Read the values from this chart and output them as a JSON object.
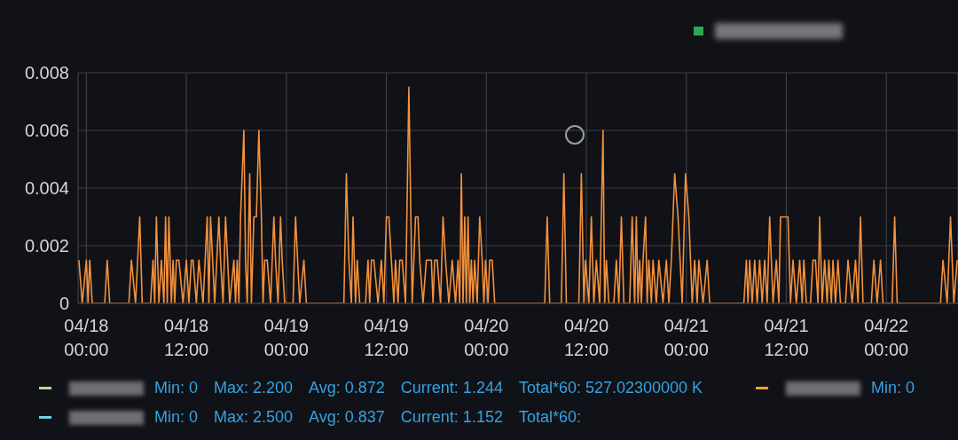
{
  "chart_data": {
    "type": "line",
    "color": "#f2913d",
    "x": [
      "--04-17T23:06",
      "--04-17T23:30",
      "--04-18T00:00",
      "--04-18T00:12",
      "--04-18T00:24",
      "--04-18T00:42",
      "--04-18T02:12",
      "--04-18T02:30",
      "--04-18T02:48",
      "--04-18T05:06",
      "--04-18T05:24",
      "--04-18T05:54",
      "--04-18T06:24",
      "--04-18T06:42",
      "--04-18T07:42",
      "--04-18T08:00",
      "--04-18T08:12",
      "--04-18T08:24",
      "--04-18T08:42",
      "--04-18T09:00",
      "--04-18T09:18",
      "--04-18T09:30",
      "--04-18T09:42",
      "--04-18T09:54",
      "--04-18T10:12",
      "--04-18T10:24",
      "--04-18T10:36",
      "--04-18T10:48",
      "--04-18T11:06",
      "--04-18T11:36",
      "--04-18T12:00",
      "--04-18T12:18",
      "--04-18T12:36",
      "--04-18T12:48",
      "--04-18T13:12",
      "--04-18T13:30",
      "--04-18T14:00",
      "--04-18T14:30",
      "--04-18T14:42",
      "--04-18T14:54",
      "--04-18T15:24",
      "--04-18T15:54",
      "--04-18T16:06",
      "--04-18T16:24",
      "--04-18T16:42",
      "--04-18T17:12",
      "--04-18T17:42",
      "--04-18T17:54",
      "--04-18T18:06",
      "--04-18T18:18",
      "--04-18T18:30",
      "--04-18T18:54",
      "--04-18T19:06",
      "--04-18T19:18",
      "--04-18T19:36",
      "--04-18T19:48",
      "--04-18T20:06",
      "--04-18T20:24",
      "--04-18T20:42",
      "--04-18T21:00",
      "--04-18T21:12",
      "--04-18T21:24",
      "--04-18T21:42",
      "--04-18T22:06",
      "--04-18T22:30",
      "--04-18T22:42",
      "--04-18T23:00",
      "--04-18T23:18",
      "--04-18T23:30",
      "--04-18T23:48",
      "--04-19T00:48",
      "--04-19T01:06",
      "--04-19T01:36",
      "--04-19T02:06",
      "--04-19T02:24",
      "--04-19T06:54",
      "--04-19T07:12",
      "--04-19T07:30",
      "--04-19T07:48",
      "--04-19T08:00",
      "--04-19T08:18",
      "--04-19T08:30",
      "--04-19T08:48",
      "--04-19T09:30",
      "--04-19T09:48",
      "--04-19T10:00",
      "--04-19T10:12",
      "--04-19T10:30",
      "--04-19T11:00",
      "--04-19T11:24",
      "--04-19T11:42",
      "--04-19T12:00",
      "--04-19T12:18",
      "--04-19T12:36",
      "--04-19T12:54",
      "--04-19T13:06",
      "--04-19T13:24",
      "--04-19T13:36",
      "--04-19T13:54",
      "--04-19T14:18",
      "--04-19T14:42",
      "--04-19T15:06",
      "--04-19T15:30",
      "--04-19T15:48",
      "--04-19T16:00",
      "--04-19T16:24",
      "--04-19T16:48",
      "--04-19T17:06",
      "--04-19T17:24",
      "--04-19T17:36",
      "--04-19T17:48",
      "--04-19T18:06",
      "--04-19T18:30",
      "--04-19T18:48",
      "--04-19T19:06",
      "--04-19T19:30",
      "--04-19T19:54",
      "--04-19T20:18",
      "--04-19T20:36",
      "--04-19T20:48",
      "--04-19T21:00",
      "--04-19T21:12",
      "--04-19T21:24",
      "--04-19T21:36",
      "--04-19T21:48",
      "--04-19T22:00",
      "--04-19T22:12",
      "--04-19T22:24",
      "--04-19T22:36",
      "--04-19T22:54",
      "--04-19T23:12",
      "--04-19T23:30",
      "--04-19T23:42",
      "--04-19T23:54",
      "--04-20T00:12",
      "--04-20T00:24",
      "--04-20T00:42",
      "--04-20T01:00",
      "--04-20T07:00",
      "--04-20T07:18",
      "--04-20T07:36",
      "--04-20T09:00",
      "--04-20T09:18",
      "--04-20T09:36",
      "--04-20T11:06",
      "--04-20T11:24",
      "--04-20T11:42",
      "--04-20T11:54",
      "--04-20T12:18",
      "--04-20T12:36",
      "--04-20T12:54",
      "--04-20T13:12",
      "--04-20T13:36",
      "--04-20T14:00",
      "--04-20T14:12",
      "--04-20T14:24",
      "--04-20T14:42",
      "--04-20T15:18",
      "--04-20T15:36",
      "--04-20T15:54",
      "--04-20T16:12",
      "--04-20T16:30",
      "--04-20T17:12",
      "--04-20T17:30",
      "--04-20T17:48",
      "--04-20T18:00",
      "--04-20T18:12",
      "--04-20T18:24",
      "--04-20T18:36",
      "--04-20T18:48",
      "--04-20T19:06",
      "--04-20T19:18",
      "--04-20T19:30",
      "--04-20T19:48",
      "--04-20T20:00",
      "--04-20T20:24",
      "--04-20T20:42",
      "--04-20T21:12",
      "--04-20T21:36",
      "--04-20T21:54",
      "--04-20T22:12",
      "--04-20T22:36",
      "--04-20T23:00",
      "--04-20T23:30",
      "--04-20T23:54",
      "--04-21T00:18",
      "--04-21T00:42",
      "--04-21T01:00",
      "--04-21T01:18",
      "--04-21T01:30",
      "--04-21T02:00",
      "--04-21T02:30",
      "--04-21T02:48",
      "--04-21T06:54",
      "--04-21T07:12",
      "--04-21T07:24",
      "--04-21T07:36",
      "--04-21T07:54",
      "--04-21T08:12",
      "--04-21T08:30",
      "--04-21T08:48",
      "--04-21T09:06",
      "--04-21T09:24",
      "--04-21T09:42",
      "--04-21T10:00",
      "--04-21T10:24",
      "--04-21T10:48",
      "--04-21T11:06",
      "--04-21T11:18",
      "--04-21T11:48",
      "--04-21T12:12",
      "--04-21T12:30",
      "--04-21T12:48",
      "--04-21T13:12",
      "--04-21T13:36",
      "--04-21T13:54",
      "--04-21T14:06",
      "--04-21T14:24",
      "--04-21T14:54",
      "--04-21T15:12",
      "--04-21T15:30",
      "--04-21T15:48",
      "--04-21T16:00",
      "--04-21T16:18",
      "--04-21T16:36",
      "--04-21T16:54",
      "--04-21T17:06",
      "--04-21T17:24",
      "--04-21T17:36",
      "--04-21T17:54",
      "--04-21T18:12",
      "--04-21T18:30",
      "--04-21T19:06",
      "--04-21T19:24",
      "--04-21T19:54",
      "--04-21T20:18",
      "--04-21T20:36",
      "--04-21T20:54",
      "--04-21T21:12",
      "--04-21T22:12",
      "--04-21T22:30",
      "--04-21T22:54",
      "--04-21T23:18",
      "--04-21T23:36",
      "--04-22T00:42",
      "--04-22T01:00",
      "--04-22T01:18",
      "--04-22T06:30",
      "--04-22T06:48",
      "--04-22T07:18",
      "--04-22T07:42",
      "--04-22T08:06",
      "--04-22T08:30"
    ],
    "values": [
      0.0015,
      0,
      0.0015,
      0,
      0.0015,
      0,
      0,
      0.0015,
      0,
      0,
      0.0015,
      0,
      0.003,
      0,
      0,
      0.0015,
      0,
      0.003,
      0,
      0.0015,
      0,
      0.003,
      0,
      0.003,
      0,
      0.0015,
      0,
      0.0015,
      0.0015,
      0,
      0.0015,
      0,
      0.0015,
      0.0015,
      0,
      0.0015,
      0,
      0.003,
      0,
      0.003,
      0,
      0.003,
      0.0015,
      0,
      0.003,
      0,
      0.0015,
      0,
      0.0015,
      0,
      0.003,
      0.006,
      0.0015,
      0,
      0.0045,
      0,
      0.003,
      0.003,
      0.006,
      0.003,
      0,
      0.0015,
      0.0015,
      0,
      0.003,
      0.0015,
      0,
      0.003,
      0.0015,
      0,
      0,
      0.003,
      0,
      0.0015,
      0,
      0,
      0.0045,
      0.0015,
      0,
      0.003,
      0,
      0.0015,
      0,
      0,
      0.0015,
      0,
      0.0015,
      0.0015,
      0,
      0.0015,
      0,
      0.003,
      0.003,
      0.0015,
      0,
      0.0015,
      0,
      0.0015,
      0.0015,
      0,
      0.0075,
      0,
      0.003,
      0.003,
      0.0015,
      0,
      0.0015,
      0.0015,
      0.0015,
      0,
      0.0015,
      0.0015,
      0,
      0.003,
      0.0015,
      0,
      0.0015,
      0,
      0.0015,
      0,
      0.0045,
      0,
      0.003,
      0,
      0.003,
      0,
      0.0015,
      0,
      0.0015,
      0,
      0.003,
      0.0015,
      0,
      0.0015,
      0,
      0.0015,
      0.0015,
      0,
      0,
      0.003,
      0,
      0,
      0.0045,
      0,
      0,
      0.0045,
      0,
      0.0015,
      0,
      0.003,
      0,
      0.0015,
      0,
      0.006,
      0,
      0.0015,
      0,
      0,
      0.0015,
      0,
      0.003,
      0,
      0,
      0.003,
      0,
      0.003,
      0,
      0.0015,
      0,
      0.0015,
      0.003,
      0,
      0.0015,
      0,
      0.0015,
      0,
      0.0015,
      0,
      0.0015,
      0,
      0.0015,
      0.0045,
      0.003,
      0,
      0.0045,
      0.003,
      0,
      0.0015,
      0,
      0.0015,
      0,
      0.0015,
      0,
      0,
      0.0015,
      0,
      0.0015,
      0,
      0.0015,
      0,
      0.0015,
      0,
      0.0015,
      0,
      0.003,
      0,
      0.0015,
      0,
      0.003,
      0.003,
      0.003,
      0,
      0.0015,
      0,
      0.0015,
      0,
      0.0015,
      0,
      0,
      0.0015,
      0.0015,
      0,
      0.003,
      0,
      0.0015,
      0,
      0.0015,
      0,
      0.0015,
      0,
      0.0015,
      0,
      0,
      0.0015,
      0,
      0.0015,
      0,
      0.003,
      0,
      0,
      0.0015,
      0,
      0.0015,
      0,
      0,
      0.003,
      0,
      0,
      0.0015,
      0,
      0.003,
      0,
      0.0015
    ],
    "xlim": [
      "--04-17T23:00",
      "--04-22T08:36"
    ],
    "ylim": [
      0,
      0.008
    ],
    "xticks": [
      {
        "value": "--04-18T00:00",
        "label": "04/18 00:00"
      },
      {
        "value": "--04-18T12:00",
        "label": "04/18 12:00"
      },
      {
        "value": "--04-19T00:00",
        "label": "04/19 00:00"
      },
      {
        "value": "--04-19T12:00",
        "label": "04/19 12:00"
      },
      {
        "value": "--04-20T00:00",
        "label": "04/20 00:00"
      },
      {
        "value": "--04-20T12:00",
        "label": "04/20 12:00"
      },
      {
        "value": "--04-21T00:00",
        "label": "04/21 00:00"
      },
      {
        "value": "--04-21T12:00",
        "label": "04/21 12:00"
      },
      {
        "value": "--04-22T00:00",
        "label": "04/22 00:00"
      }
    ],
    "yticks": [
      0,
      0.002,
      0.004,
      0.006,
      0.008
    ],
    "grid": true,
    "annotations": [
      "Min: 0  Max: 2.200  Avg: 0.872  Current: 1.244  Total*60: 527.02300000 K",
      "Min: 0",
      "Min: 0  Max: 2.500  Avg: 0.837  Current: 1.152  Total*60:"
    ]
  }
}
